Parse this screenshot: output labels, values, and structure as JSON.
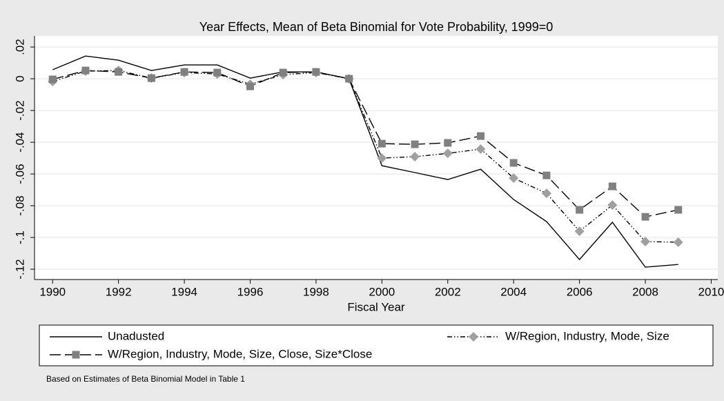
{
  "chart_data": {
    "type": "line",
    "title": "Year Effects, Mean of Beta Binomial for Vote Probability, 1999=0",
    "x_label": "Fiscal Year",
    "note": "Based on Estimates of Beta Binomial Model in Table 1",
    "x": [
      1990,
      1991,
      1992,
      1993,
      1994,
      1995,
      1996,
      1997,
      1998,
      1999,
      2000,
      2001,
      2002,
      2003,
      2004,
      2005,
      2006,
      2007,
      2008,
      2009
    ],
    "series": [
      {
        "name": "Unadusted",
        "color": "#000000",
        "line_style": "solid",
        "marker": "none",
        "values": [
          0.0057,
          0.0143,
          0.0117,
          0.0052,
          0.0087,
          0.0087,
          0.0004,
          0.0043,
          0.0043,
          0,
          -0.0548,
          -0.0591,
          -0.0635,
          -0.057,
          -0.0761,
          -0.09,
          -0.1139,
          -0.0904,
          -0.1187,
          -0.117
        ]
      },
      {
        "name": "W/Region, Industry, Mode, Size",
        "color": "#a0a0a0",
        "line_style": "dash-dot-dot",
        "marker": "diamond",
        "values": [
          -0.0017,
          0.0048,
          0.0052,
          0.0004,
          0.0039,
          0.003,
          -0.0035,
          0.0026,
          0.0039,
          0,
          -0.05,
          -0.0491,
          -0.047,
          -0.0443,
          -0.0626,
          -0.0722,
          -0.0961,
          -0.0796,
          -0.1026,
          -0.103
        ]
      },
      {
        "name": "W/Region, Industry, Mode, Size, Close, Size*Close",
        "color": "#808080",
        "line_style": "long-dash",
        "marker": "square",
        "values": [
          -0.0004,
          0.0052,
          0.0043,
          0.0004,
          0.0043,
          0.0039,
          -0.0048,
          0.0039,
          0.0043,
          0,
          -0.0409,
          -0.0413,
          -0.0404,
          -0.0361,
          -0.053,
          -0.0609,
          -0.0826,
          -0.0678,
          -0.087,
          -0.0826
        ]
      }
    ],
    "xlim": [
      1989.45,
      2010.2
    ],
    "xticks": [
      1990,
      1992,
      1994,
      1996,
      1998,
      2000,
      2002,
      2004,
      2006,
      2008,
      2010
    ],
    "ylim": [
      -0.1265,
      0.027
    ],
    "yticks": [
      {
        "value": 0.02,
        "label": ".02"
      },
      0,
      {
        "value": -0.02,
        "label": "-.02"
      },
      {
        "value": -0.04,
        "label": "-.04"
      },
      {
        "value": -0.06,
        "label": "-.06"
      },
      {
        "value": -0.08,
        "label": "-.08"
      },
      {
        "value": -0.1,
        "label": "-.1"
      },
      {
        "value": -0.12,
        "label": "-.12"
      }
    ],
    "grid": true
  }
}
